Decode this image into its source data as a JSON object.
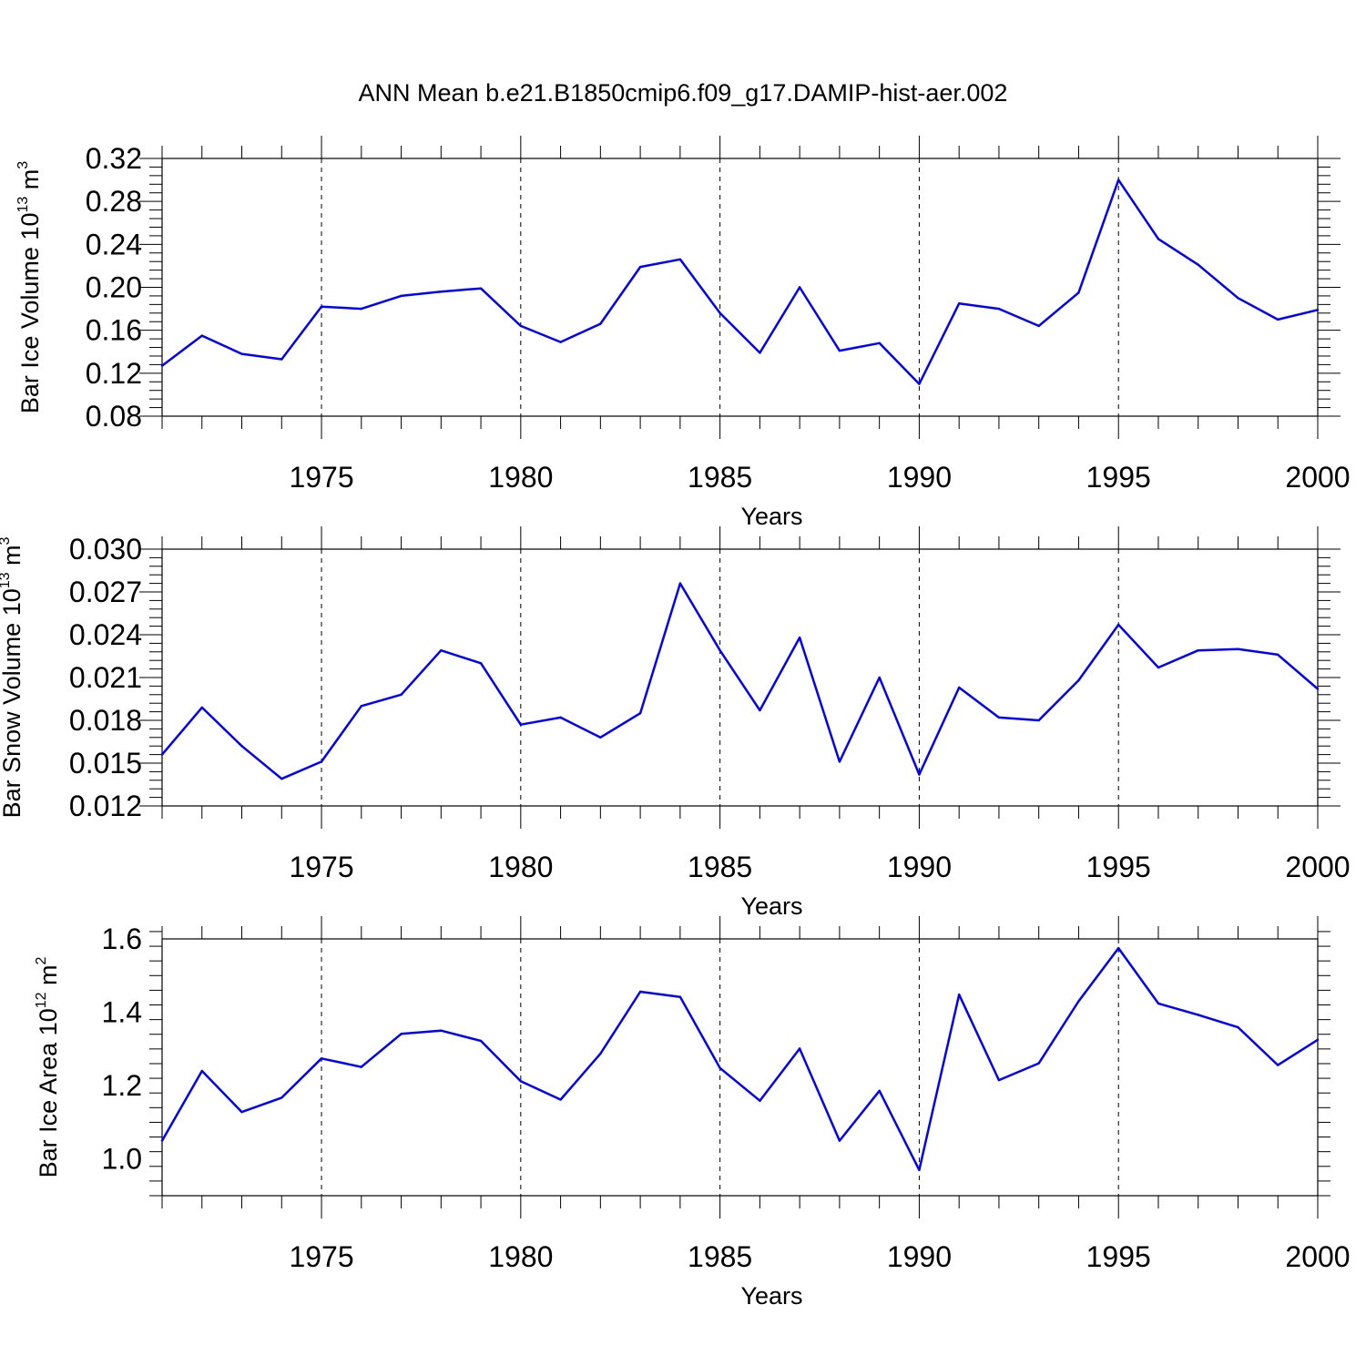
{
  "title": "ANN Mean b.e21.B1850cmip6.f09_g17.DAMIP-hist-aer.002",
  "line_color": "#0000ff",
  "chart_data": [
    {
      "type": "line",
      "title": "ANN Mean b.e21.B1850cmip6.f09_g17.DAMIP-hist-aer.002",
      "xlabel": "Years",
      "ylabel": "Bar Ice Volume 10",
      "ylabel_sup": "13",
      "ylabel_unit": " m",
      "ylabel_unit_sup": "3",
      "xlim": [
        1971,
        2000
      ],
      "ylim": [
        0.08,
        0.32
      ],
      "xticks": [
        1975,
        1980,
        1985,
        1990,
        1995,
        2000
      ],
      "xtick_labels": [
        "1975",
        "1980",
        "1985",
        "1990",
        "1995",
        "2000"
      ],
      "yticks": [
        0.08,
        0.12,
        0.16,
        0.2,
        0.24,
        0.28,
        0.32
      ],
      "ytick_labels": [
        "0.08",
        "0.12",
        "0.16",
        "0.20",
        "0.24",
        "0.28",
        "0.32"
      ],
      "x": [
        1971,
        1972,
        1973,
        1974,
        1975,
        1976,
        1977,
        1978,
        1979,
        1980,
        1981,
        1982,
        1983,
        1984,
        1985,
        1986,
        1987,
        1988,
        1989,
        1990,
        1991,
        1992,
        1993,
        1994,
        1995,
        1996,
        1997,
        1998,
        1999,
        2000
      ],
      "values": [
        0.127,
        0.155,
        0.138,
        0.133,
        0.182,
        0.18,
        0.192,
        0.196,
        0.199,
        0.164,
        0.149,
        0.166,
        0.219,
        0.226,
        0.176,
        0.139,
        0.2,
        0.141,
        0.148,
        0.11,
        0.185,
        0.18,
        0.164,
        0.195,
        0.3,
        0.245,
        0.221,
        0.19,
        0.17,
        0.179
      ]
    },
    {
      "type": "line",
      "xlabel": "Years",
      "ylabel": "Bar Snow Volume 10",
      "ylabel_sup": "13",
      "ylabel_unit": " m",
      "ylabel_unit_sup": "3",
      "xlim": [
        1971,
        2000
      ],
      "ylim": [
        0.012,
        0.03
      ],
      "xticks": [
        1975,
        1980,
        1985,
        1990,
        1995,
        2000
      ],
      "xtick_labels": [
        "1975",
        "1980",
        "1985",
        "1990",
        "1995",
        "2000"
      ],
      "yticks": [
        0.012,
        0.015,
        0.018,
        0.021,
        0.024,
        0.027,
        0.03
      ],
      "ytick_labels": [
        "0.012",
        "0.015",
        "0.018",
        "0.021",
        "0.024",
        "0.027",
        "0.030"
      ],
      "x": [
        1971,
        1972,
        1973,
        1974,
        1975,
        1976,
        1977,
        1978,
        1979,
        1980,
        1981,
        1982,
        1983,
        1984,
        1985,
        1986,
        1987,
        1988,
        1989,
        1990,
        1991,
        1992,
        1993,
        1994,
        1995,
        1996,
        1997,
        1998,
        1999,
        2000
      ],
      "values": [
        0.0156,
        0.0189,
        0.0162,
        0.0139,
        0.0151,
        0.019,
        0.0198,
        0.0229,
        0.022,
        0.0177,
        0.0182,
        0.0168,
        0.0185,
        0.0276,
        0.0229,
        0.0187,
        0.0238,
        0.0151,
        0.021,
        0.0142,
        0.0203,
        0.0182,
        0.018,
        0.0208,
        0.0247,
        0.0217,
        0.0229,
        0.023,
        0.0226,
        0.0202
      ]
    },
    {
      "type": "line",
      "xlabel": "Years",
      "ylabel": "Bar Ice Area 10",
      "ylabel_sup": "12",
      "ylabel_unit": " m",
      "ylabel_unit_sup": "2",
      "xlim": [
        1971,
        2000
      ],
      "ylim": [
        0.9,
        1.6
      ],
      "xticks": [
        1975,
        1980,
        1985,
        1990,
        1995,
        2000
      ],
      "xtick_labels": [
        "1975",
        "1980",
        "1985",
        "1990",
        "1995",
        "2000"
      ],
      "yticks": [
        1.0,
        1.2,
        1.4,
        1.6
      ],
      "ytick_labels": [
        "1.0",
        "1.2",
        "1.4",
        "1.6"
      ],
      "x": [
        1971,
        1972,
        1973,
        1974,
        1975,
        1976,
        1977,
        1978,
        1979,
        1980,
        1981,
        1982,
        1983,
        1984,
        1985,
        1986,
        1987,
        1988,
        1989,
        1990,
        1991,
        1992,
        1993,
        1994,
        1995,
        1996,
        1997,
        1998,
        1999,
        2000
      ],
      "values": [
        1.05,
        1.24,
        1.128,
        1.167,
        1.274,
        1.251,
        1.341,
        1.35,
        1.322,
        1.212,
        1.162,
        1.287,
        1.456,
        1.442,
        1.248,
        1.159,
        1.301,
        1.05,
        1.186,
        0.97,
        1.448,
        1.215,
        1.261,
        1.43,
        1.575,
        1.424,
        1.393,
        1.359,
        1.256,
        1.325
      ]
    }
  ]
}
